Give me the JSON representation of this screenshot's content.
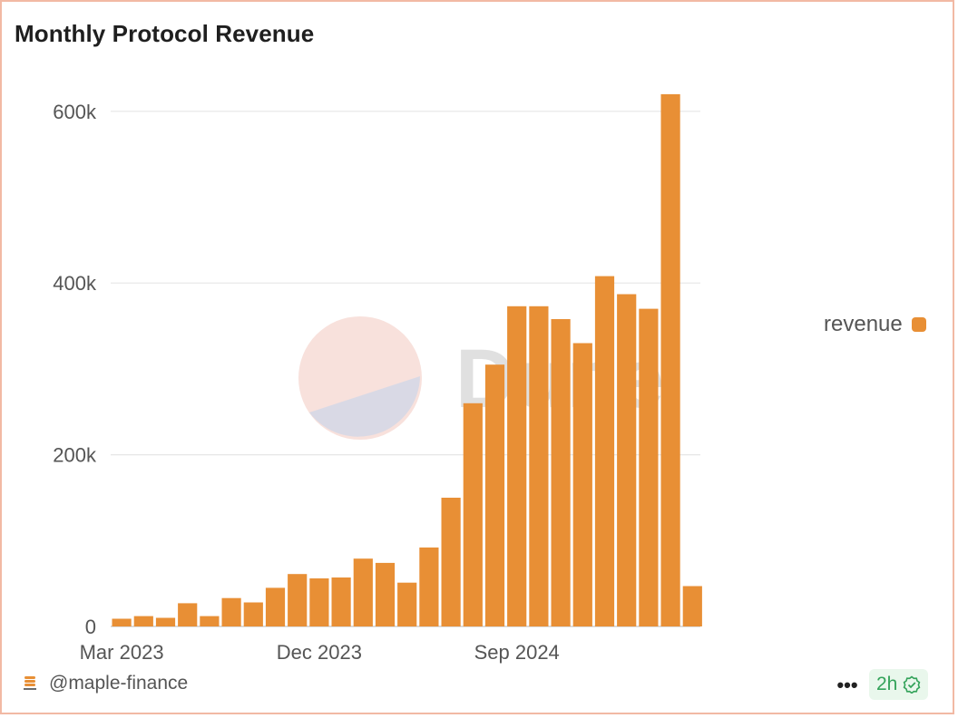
{
  "header": {
    "title": "Monthly Protocol Revenue"
  },
  "watermark": {
    "text": "Dune"
  },
  "legend": {
    "label": "revenue",
    "color": "#e88f35"
  },
  "footer": {
    "author": "@maple-finance",
    "more_label": "•••",
    "freshness": "2h",
    "freshness_color": "#33a35a"
  },
  "chart_data": {
    "type": "bar",
    "title": "Monthly Protocol Revenue",
    "xlabel": "",
    "ylabel": "",
    "ylim": [
      0,
      660000
    ],
    "grid": true,
    "legend_position": "right",
    "categories": [
      "Mar 2023",
      "Apr 2023",
      "May 2023",
      "Jun 2023",
      "Jul 2023",
      "Aug 2023",
      "Sep 2023",
      "Oct 2023",
      "Nov 2023",
      "Dec 2023",
      "Jan 2024",
      "Feb 2024",
      "Mar 2024",
      "Apr 2024",
      "May 2024",
      "Jun 2024",
      "Jul 2024",
      "Aug 2024",
      "Sep 2024",
      "Oct 2024",
      "Nov 2024",
      "Dec 2024",
      "Jan 2025",
      "Feb 2025",
      "Mar 2025",
      "Apr 2025",
      "May 2025"
    ],
    "series": [
      {
        "name": "revenue",
        "color": "#e88f35",
        "values": [
          9000,
          12000,
          10000,
          27000,
          12000,
          33000,
          28000,
          45000,
          61000,
          56000,
          57000,
          79000,
          74000,
          51000,
          92000,
          150000,
          260000,
          305000,
          373000,
          373000,
          358000,
          330000,
          408000,
          387000,
          370000,
          620000,
          47000
        ]
      }
    ],
    "y_ticks": [
      0,
      200000,
      400000,
      600000
    ],
    "y_tick_labels": [
      "0",
      "200k",
      "400k",
      "600k"
    ],
    "x_tick_labels": [
      {
        "label": "Mar 2023",
        "category": "Mar 2023"
      },
      {
        "label": "Dec 2023",
        "category": "Dec 2023"
      },
      {
        "label": "Sep 2024",
        "category": "Sep 2024"
      }
    ]
  }
}
